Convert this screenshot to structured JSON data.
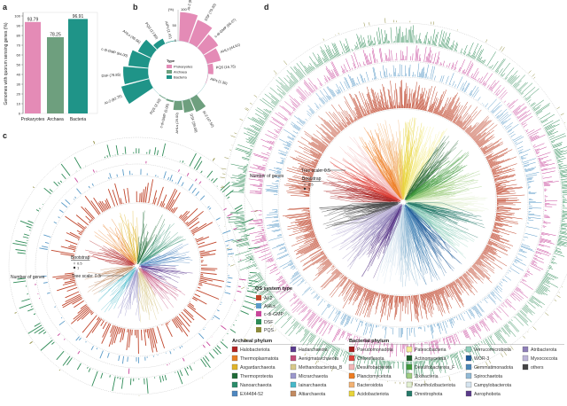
{
  "panels": {
    "a": "a",
    "b": "b",
    "c": "c",
    "d": "d"
  },
  "chart_data": [
    {
      "type": "bar",
      "title": "",
      "categories": [
        "Prokaryotes",
        "Archaea",
        "Bacteria"
      ],
      "values": [
        93.79,
        78.25,
        96.91
      ],
      "value_labels": [
        "93.79",
        "78.25",
        "96.91"
      ],
      "colors": [
        "#e48bb6",
        "#6e9f7e",
        "#1f9488"
      ],
      "xlabel": "",
      "ylabel": "Genomes with quorum sensing genes (%)",
      "ylim": [
        0,
        100
      ],
      "yticks": [
        "0",
        "10",
        "20",
        "30",
        "40",
        "50",
        "60",
        "70",
        "80",
        "90",
        "100"
      ]
    },
    {
      "type": "bar",
      "subtype": "radial",
      "axis_label": "(%)",
      "axis_ticks": [
        "0",
        "50",
        "100"
      ],
      "ylim": [
        0,
        100
      ],
      "legend_title": "Type",
      "legend": [
        {
          "name": "Prokaryotes",
          "color": "#e48bb6"
        },
        {
          "name": "Archaea",
          "color": "#6e9f7e"
        },
        {
          "name": "Bacteria",
          "color": "#1f9488"
        }
      ],
      "groups": [
        {
          "name": "Prokaryotes",
          "bars": [
            {
              "label": "AI-2",
              "value": 92.76,
              "text": "(92.76)"
            },
            {
              "label": "DSF",
              "value": 79.3,
              "text": "(79.30)"
            },
            {
              "label": "c-di-GMP",
              "value": 56.07,
              "text": "(56.07)"
            },
            {
              "label": "AHLs",
              "value": 44.61,
              "text": "(44.61)"
            },
            {
              "label": "PQS",
              "value": 16.75,
              "text": "(16.75)"
            },
            {
              "label": "AIPs",
              "value": 1.3,
              "text": "(1.30)"
            }
          ]
        },
        {
          "name": "Archaea",
          "bars": [
            {
              "label": "AI-2",
              "value": 47.5,
              "text": "(47.50)"
            },
            {
              "label": "DSF",
              "value": 39.0,
              "text": "(39.00)"
            },
            {
              "label": "AHLs",
              "value": 29.0,
              "text": "(29.00)"
            },
            {
              "label": "c-di-GMP",
              "value": 5.0,
              "text": "(5.00)"
            },
            {
              "label": "PQS",
              "value": 2.1,
              "text": "(2.10)"
            }
          ]
        },
        {
          "name": "Bacteria",
          "bars": [
            {
              "label": "AI-2",
              "value": 92.75,
              "text": "(92.75)"
            },
            {
              "label": "DSF",
              "value": 79.85,
              "text": "(79.85)"
            },
            {
              "label": "c-di-GMP",
              "value": 64.0,
              "text": "(64.00)"
            },
            {
              "label": "AHLs",
              "value": 46.56,
              "text": "(46.56)"
            },
            {
              "label": "PQS",
              "value": 17.89,
              "text": "(17.89)"
            },
            {
              "label": "AIPs",
              "value": 1.41,
              "text": "(1.41)"
            }
          ]
        }
      ]
    }
  ],
  "trees": {
    "c": {
      "number_of_genes": "Number of genes",
      "bootstrap": "Bootstrap",
      "bootstrap_values": [
        "0.5",
        "1"
      ],
      "tree_scale": "Tree scale: 0.5"
    },
    "d": {
      "number_of_genes": "Number of genes",
      "bootstrap": "Bootstrap",
      "bootstrap_values": [
        "0.5",
        "1"
      ],
      "tree_scale": "Tree scale: 0.5"
    }
  },
  "qs_legend": {
    "title": "QS system type",
    "items": [
      {
        "name": "AI-2",
        "color": "#c0452b"
      },
      {
        "name": "AHLs",
        "color": "#5a9bc8"
      },
      {
        "name": "c-di-GMP",
        "color": "#c8469b"
      },
      {
        "name": "DSF",
        "color": "#2e8b57"
      },
      {
        "name": "PQS",
        "color": "#8d8a3c"
      }
    ]
  },
  "archaeal_legend": {
    "title": "Archaeal phylum",
    "items": [
      {
        "name": "Halobacteriota",
        "color": "#b22222"
      },
      {
        "name": "Thermoplasmatota",
        "color": "#e87e24"
      },
      {
        "name": "Asgardarchaeota",
        "color": "#e0b429"
      },
      {
        "name": "Thermoproteota",
        "color": "#1f6b37"
      },
      {
        "name": "Nanoarchaeota",
        "color": "#2a8c6a"
      },
      {
        "name": "EX4484-52",
        "color": "#4e87c0"
      },
      {
        "name": "Hadarchaeota",
        "color": "#5b3a8f"
      },
      {
        "name": "Aenigmatarchaeota",
        "color": "#c44d7a"
      },
      {
        "name": "Methanobacteriota_B",
        "color": "#d8c98a"
      },
      {
        "name": "Micrarchaeota",
        "color": "#9b97cc"
      },
      {
        "name": "Iainarchaeota",
        "color": "#47b8c9"
      },
      {
        "name": "Altiarchaeota",
        "color": "#c28a60"
      }
    ]
  },
  "bacterial_legend": {
    "title": "Bacterial phylum",
    "items": [
      {
        "name": "Pseudomonadota",
        "color": "#a61c1c"
      },
      {
        "name": "Chloroflexota",
        "color": "#e0423a"
      },
      {
        "name": "Desulfobacterota",
        "color": "#f2b6b6"
      },
      {
        "name": "Planctomycetota",
        "color": "#ee7d22"
      },
      {
        "name": "Bacteroidota",
        "color": "#f2b173"
      },
      {
        "name": "Acidobacteriota",
        "color": "#e8d43a"
      },
      {
        "name": "Patescibacteria",
        "color": "#f5ee95"
      },
      {
        "name": "Actinomycetota",
        "color": "#1c5e2a"
      },
      {
        "name": "Desulfobacterota_F",
        "color": "#3f9a3a"
      },
      {
        "name": "Zixibacteria",
        "color": "#a0cf82"
      },
      {
        "name": "Krumholzibacteriota",
        "color": "#e2efd0"
      },
      {
        "name": "Omnitrophota",
        "color": "#257a6a"
      },
      {
        "name": "Verrucomicrobiota",
        "color": "#8fd0bd"
      },
      {
        "name": "WOR-3",
        "color": "#1f5b9a"
      },
      {
        "name": "Gemmatimonadota",
        "color": "#4a87b8"
      },
      {
        "name": "Spirochaetota",
        "color": "#92bad6"
      },
      {
        "name": "Campylobacterota",
        "color": "#d5e4ef"
      },
      {
        "name": "Aerophobota",
        "color": "#5a3a8a"
      },
      {
        "name": "Atribacterota",
        "color": "#8e7fb8"
      },
      {
        "name": "Myxococcota",
        "color": "#bdb5d8"
      },
      {
        "name": "others",
        "color": "#444444"
      }
    ]
  }
}
